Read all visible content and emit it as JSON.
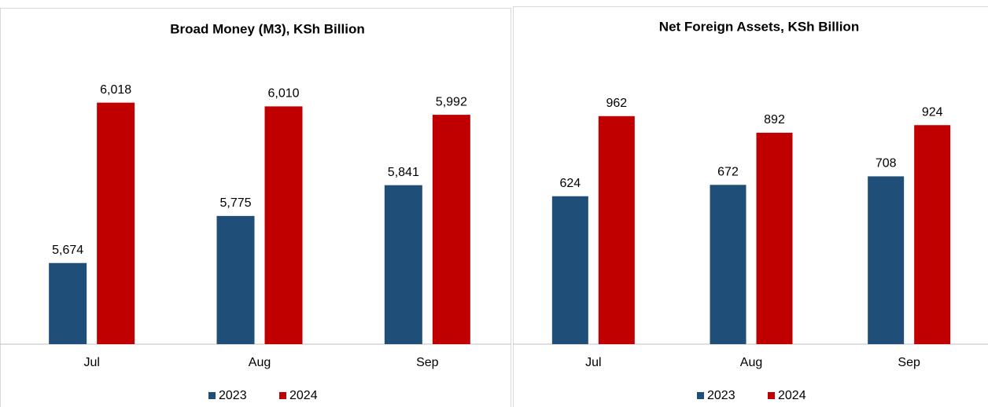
{
  "chart_data": [
    {
      "type": "bar",
      "title": "Broad Money (M3), KSh Billion",
      "categories": [
        "Jul",
        "Aug",
        "Sep"
      ],
      "series": [
        {
          "name": "2023",
          "color": "#1f4e79",
          "values": [
            5674,
            5775,
            5841
          ],
          "value_labels": [
            "5,674",
            "5,775",
            "5,841"
          ]
        },
        {
          "name": "2024",
          "color": "#c00000",
          "values": [
            6018,
            6010,
            5992
          ],
          "value_labels": [
            "6,018",
            "6,010",
            "5,992"
          ]
        }
      ],
      "ylim": [
        5500,
        6100
      ]
    },
    {
      "type": "bar",
      "title": "Net Foreign Assets, KSh Billion",
      "categories": [
        "Jul",
        "Aug",
        "Sep"
      ],
      "series": [
        {
          "name": "2023",
          "color": "#1f4e79",
          "values": [
            624,
            672,
            708
          ]
        },
        {
          "name": "2024",
          "color": "#c00000",
          "values": [
            962,
            892,
            924
          ]
        }
      ],
      "ylim": [
        0,
        1200
      ]
    }
  ]
}
